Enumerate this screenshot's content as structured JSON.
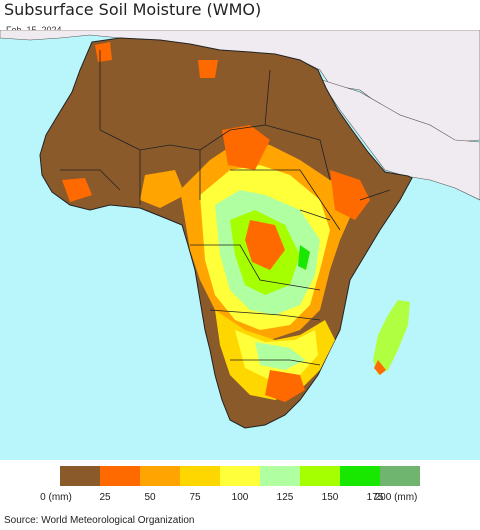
{
  "title": "Subsurface Soil Moisture (WMO)",
  "date": "Feb. 15, 2024",
  "source": "Source: World Meteorological Organization",
  "colors": {
    "ocean": "#b8f6fb",
    "other_land": "#f0ebf0",
    "border": "#222222"
  },
  "legend": {
    "colors": [
      "#8b5a2b",
      "#ff6a00",
      "#ffa400",
      "#ffd700",
      "#ffff3a",
      "#b0ffa0",
      "#a6ff00",
      "#18e800",
      "#6fb56f"
    ],
    "ticks": [
      "0 (mm)",
      "25",
      "50",
      "75",
      "100",
      "125",
      "150",
      "175",
      "200 (mm)"
    ]
  }
}
